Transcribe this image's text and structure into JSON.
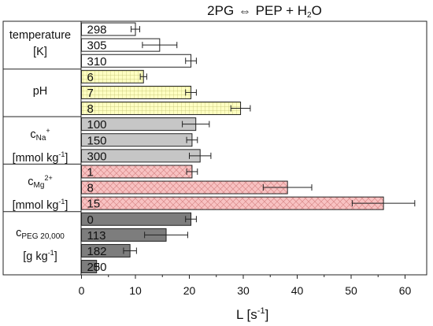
{
  "chart_data": {
    "type": "bar",
    "orientation": "horizontal",
    "title": {
      "left": "2PG",
      "arrow": "⇔",
      "right_main": "PEP + H",
      "right_sub": "2",
      "right_tail": "O"
    },
    "xlabel": {
      "main": "L [s",
      "sup": "-1",
      "tail": "]"
    },
    "xlim": [
      0,
      64
    ],
    "xticks": [
      "0",
      "10",
      "20",
      "30",
      "40",
      "50",
      "60"
    ],
    "grid": false,
    "groups": [
      {
        "name": "temperature",
        "label_parts": [
          {
            "t": "temperature",
            "k": "main"
          },
          {
            "t": "[K]",
            "k": "line"
          }
        ],
        "fill": "#ffffff",
        "pattern": "none",
        "bars": [
          {
            "label": "298",
            "value": 10,
            "error": 0.8
          },
          {
            "label": "305",
            "value": 14.5,
            "error": 3.2
          },
          {
            "label": "310",
            "value": 20.3,
            "error": 1.0
          }
        ]
      },
      {
        "name": "pH",
        "label_parts": [
          {
            "t": "pH",
            "k": "main"
          }
        ],
        "fill": "#ffffc2",
        "pattern": "grid",
        "bars": [
          {
            "label": "6",
            "value": 11.5,
            "error": 0.6
          },
          {
            "label": "7",
            "value": 20.3,
            "error": 1.0
          },
          {
            "label": "8",
            "value": 29.5,
            "error": 1.8
          }
        ]
      },
      {
        "name": "c Na+",
        "label_parts": [
          {
            "t": "c",
            "k": "main"
          },
          {
            "t": "Na",
            "k": "sub"
          },
          {
            "t": "+",
            "k": "sup"
          },
          {
            "t": "[mmol kg",
            "k": "line"
          },
          {
            "t": "-1",
            "k": "sup"
          },
          {
            "t": "]",
            "k": "main"
          }
        ],
        "fill": "#c6c6c6",
        "pattern": "none",
        "bars": [
          {
            "label": "100",
            "value": 21.2,
            "error": 2.5
          },
          {
            "label": "150",
            "value": 20.5,
            "error": 1.0
          },
          {
            "label": "300",
            "value": 22.0,
            "error": 2.0
          }
        ]
      },
      {
        "name": "c Mg2+",
        "label_parts": [
          {
            "t": "c",
            "k": "main"
          },
          {
            "t": "Mg",
            "k": "sub"
          },
          {
            "t": "2+",
            "k": "sup"
          },
          {
            "t": "[mmol kg",
            "k": "line"
          },
          {
            "t": "-1",
            "k": "sup"
          },
          {
            "t": "]",
            "k": "main"
          }
        ],
        "fill": "#f8c2c2",
        "pattern": "cross",
        "bars": [
          {
            "label": "1",
            "value": 20.5,
            "error": 1.0
          },
          {
            "label": "8",
            "value": 38.2,
            "error": 4.5
          },
          {
            "label": "15",
            "value": 56.0,
            "error": 5.8
          }
        ]
      },
      {
        "name": "c PEG 20,000",
        "label_parts": [
          {
            "t": "c",
            "k": "main"
          },
          {
            "t": "PEG 20,000",
            "k": "sub"
          },
          {
            "t": "[g kg",
            "k": "line"
          },
          {
            "t": "-1",
            "k": "sup"
          },
          {
            "t": "]",
            "k": "main"
          }
        ],
        "fill": "#7d7d7d",
        "pattern": "none",
        "bars": [
          {
            "label": "0",
            "value": 20.3,
            "error": 1.0
          },
          {
            "label": "113",
            "value": 15.7,
            "error": 4.0
          },
          {
            "label": "182",
            "value": 9.0,
            "error": 1.2
          },
          {
            "label": "250",
            "value": 2.8,
            "error": 0.4
          }
        ]
      }
    ]
  }
}
